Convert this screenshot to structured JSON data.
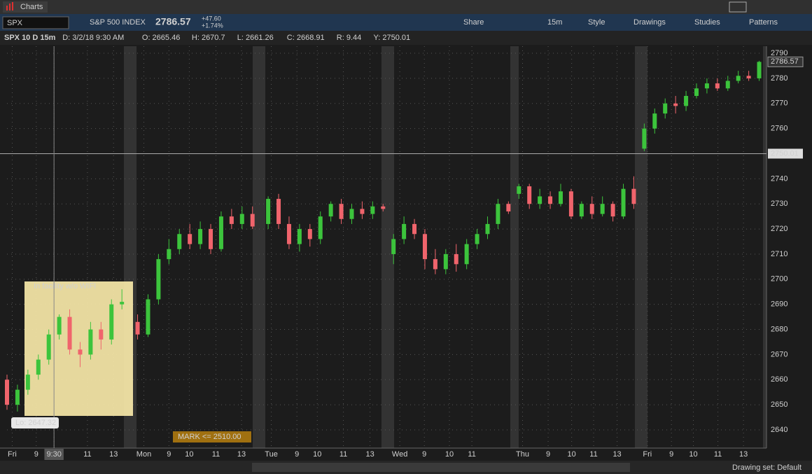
{
  "ui": {
    "window_title": "Charts",
    "symbol": "SPX",
    "symbol_name": "S&P 500 INDEX",
    "last": "2786.57",
    "change": "+47.60",
    "change_pct": "+1.74%",
    "buttons": [
      "Share",
      "15m",
      "Style",
      "Drawings",
      "Studies",
      "Patterns"
    ],
    "info": [
      "SPX 10 D 15m",
      "D: 3/2/18 9:30 AM",
      "O: 2665.46",
      "H: 2670.7",
      "L: 2661.26",
      "C: 2668.91",
      "R: 9.44",
      "Y: 2750.01"
    ],
    "note": "In facility w/o WIFI",
    "low_label": "Lo: 2647.32",
    "alert": "MARK <= 2510.00",
    "drawing_set": "Drawing set: Default"
  },
  "chart_data": {
    "type": "candlestick",
    "grid": true,
    "up_color": "#3cc43c",
    "down_color": "#f0646c",
    "x": [
      0,
      2,
      4,
      6,
      8,
      10,
      12,
      14,
      16,
      18,
      20,
      22,
      25,
      27,
      29,
      31,
      33,
      35,
      37,
      39,
      41,
      43,
      45,
      47,
      50,
      52,
      54,
      56,
      58,
      60,
      62,
      64,
      66,
      68,
      70,
      72,
      74,
      76,
      78,
      80,
      82,
      84,
      86,
      88,
      90,
      92,
      94,
      96,
      98,
      100,
      102,
      104,
      106,
      108,
      110,
      112,
      114,
      116,
      118,
      120,
      122,
      124,
      126,
      128,
      130,
      132,
      134,
      136,
      138,
      140,
      142,
      144
    ],
    "open": [
      2660,
      2650,
      2656,
      2662,
      2668,
      2678,
      2685,
      2672,
      2670,
      2680,
      2676,
      2690,
      2683,
      2678,
      2692,
      2708,
      2712,
      2718,
      2714,
      2720,
      2712,
      2725,
      2722,
      2726,
      2722,
      2732,
      2722,
      2714,
      2720,
      2716,
      2725,
      2730,
      2724,
      2728,
      2726,
      2729,
      2710,
      2716,
      2722,
      2718,
      2708,
      2704,
      2710,
      2706,
      2714,
      2718,
      2722,
      2730,
      2734,
      2737,
      2730,
      2733,
      2730,
      2735,
      2725,
      2730,
      2726,
      2730,
      2725,
      2736,
      2752,
      2760,
      2766,
      2770,
      2769,
      2773,
      2776,
      2778,
      2776,
      2779,
      2781,
      2780
    ],
    "high": [
      2662,
      2658,
      2664,
      2670,
      2680,
      2686,
      2688,
      2675,
      2683,
      2683,
      2692,
      2696,
      2686,
      2694,
      2710,
      2716,
      2720,
      2722,
      2723,
      2722,
      2727,
      2728,
      2729,
      2729,
      2733,
      2734,
      2725,
      2722,
      2722,
      2727,
      2731,
      2732,
      2730,
      2731,
      2731,
      2730,
      2718,
      2725,
      2724,
      2720,
      2712,
      2712,
      2714,
      2716,
      2720,
      2725,
      2732,
      2731,
      2738,
      2738,
      2736,
      2735,
      2738,
      2736,
      2731,
      2733,
      2733,
      2731,
      2738,
      2741,
      2762,
      2768,
      2772,
      2773,
      2775,
      2778,
      2780,
      2780,
      2781,
      2783,
      2783,
      2787
    ],
    "low": [
      2648,
      2647.32,
      2654,
      2660,
      2666,
      2676,
      2670,
      2665,
      2668,
      2672,
      2674,
      2688,
      2676,
      2677,
      2690,
      2706,
      2710,
      2712,
      2712,
      2710,
      2711,
      2720,
      2720,
      2720,
      2720,
      2720,
      2712,
      2711,
      2713,
      2714,
      2723,
      2722,
      2722,
      2724,
      2724,
      2727,
      2706,
      2714,
      2716,
      2704,
      2702,
      2702,
      2703,
      2704,
      2712,
      2716,
      2720,
      2726,
      2732,
      2728,
      2728,
      2728,
      2729,
      2724,
      2724,
      2724,
      2725,
      2723,
      2724,
      2728,
      2751,
      2758,
      2764,
      2766,
      2767,
      2772,
      2774,
      2775,
      2775,
      2778,
      2779,
      2779
    ],
    "close": [
      2650,
      2656,
      2662,
      2668,
      2678,
      2685,
      2672,
      2670,
      2680,
      2676,
      2690,
      2691,
      2678,
      2692,
      2708,
      2712,
      2718,
      2714,
      2720,
      2712,
      2725,
      2722,
      2726,
      2721,
      2732,
      2722,
      2714,
      2720,
      2716,
      2725,
      2730,
      2724,
      2728,
      2726,
      2729,
      2728,
      2716,
      2722,
      2718,
      2708,
      2704,
      2710,
      2706,
      2714,
      2718,
      2722,
      2730,
      2727,
      2737,
      2730,
      2733,
      2730,
      2735,
      2725,
      2730,
      2726,
      2730,
      2725,
      2736,
      2730,
      2760,
      2766,
      2770,
      2769,
      2773,
      2776,
      2778,
      2776,
      2779,
      2781,
      2780,
      2786.57
    ],
    "xlim": [
      0,
      145
    ],
    "ylim": [
      2632.75,
      2792.8
    ],
    "yticks": [
      2640,
      2650,
      2660,
      2670,
      2680,
      2690,
      2700,
      2710,
      2720,
      2730,
      2740,
      2750,
      2760,
      2770,
      2780,
      2790
    ],
    "xticks": [
      {
        "value": 1,
        "label": "Fri"
      },
      {
        "value": 5.6,
        "label": "9"
      },
      {
        "value": 9,
        "label": "9:30"
      },
      {
        "value": 15.4,
        "label": "11"
      },
      {
        "value": 20.4,
        "label": "13"
      },
      {
        "value": 26.2,
        "label": "Mon"
      },
      {
        "value": 31,
        "label": "9"
      },
      {
        "value": 34.9,
        "label": "10"
      },
      {
        "value": 40,
        "label": "11"
      },
      {
        "value": 44.9,
        "label": "13"
      },
      {
        "value": 50.6,
        "label": "Tue"
      },
      {
        "value": 55.5,
        "label": "9"
      },
      {
        "value": 59.4,
        "label": "10"
      },
      {
        "value": 64.4,
        "label": "11"
      },
      {
        "value": 69.5,
        "label": "13"
      },
      {
        "value": 75.2,
        "label": "Wed"
      },
      {
        "value": 79.9,
        "label": "9"
      },
      {
        "value": 84.7,
        "label": "10"
      },
      {
        "value": 89,
        "label": "11"
      },
      {
        "value": 98.7,
        "label": "Thu"
      },
      {
        "value": 103.6,
        "label": "9"
      },
      {
        "value": 108.1,
        "label": "10"
      },
      {
        "value": 112.3,
        "label": "11"
      },
      {
        "value": 116.8,
        "label": "13"
      },
      {
        "value": 122.6,
        "label": "Fri"
      },
      {
        "value": 127.2,
        "label": "9"
      },
      {
        "value": 131.4,
        "label": "10"
      },
      {
        "value": 136.1,
        "label": "11"
      },
      {
        "value": 141,
        "label": "13"
      }
    ],
    "last_price": 2786.57,
    "cursor_price": 2750.01
  }
}
